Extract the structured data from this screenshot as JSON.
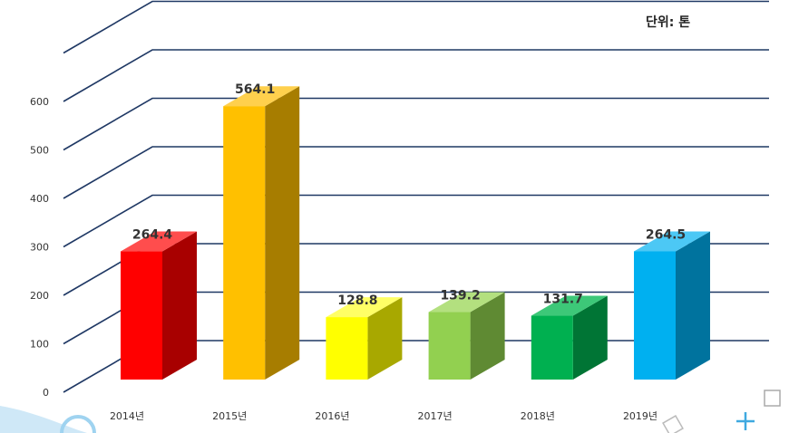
{
  "unit_label": "단위: 톤",
  "chart_data": {
    "type": "bar",
    "title": "",
    "xlabel": "",
    "ylabel": "",
    "categories": [
      "2014년",
      "2015년",
      "2016년",
      "2017년",
      "2018년",
      "2019년"
    ],
    "values": [
      264.4,
      564.1,
      128.8,
      139.2,
      131.7,
      264.5
    ],
    "data_labels": [
      "264.4",
      "564.1",
      "128.8",
      "139.2",
      "131.7",
      "264.5"
    ],
    "y_ticks": [
      0,
      100,
      200,
      300,
      400,
      500,
      600
    ],
    "ylim": [
      0,
      700
    ],
    "grid": true,
    "style": "3d",
    "colors": [
      {
        "front": "#ff0000",
        "side": "#a80000",
        "top": "#ff4d4d"
      },
      {
        "front": "#ffc000",
        "side": "#a77d00",
        "top": "#ffd04d"
      },
      {
        "front": "#ffff00",
        "side": "#a8a800",
        "top": "#ffff66"
      },
      {
        "front": "#92d050",
        "side": "#5f8a33",
        "top": "#b3e07f"
      },
      {
        "front": "#00b050",
        "side": "#007535",
        "top": "#3dc878"
      },
      {
        "front": "#00b0f0",
        "side": "#00739e",
        "top": "#4cc8f5"
      }
    ],
    "gridline_color": "#1f3864"
  }
}
